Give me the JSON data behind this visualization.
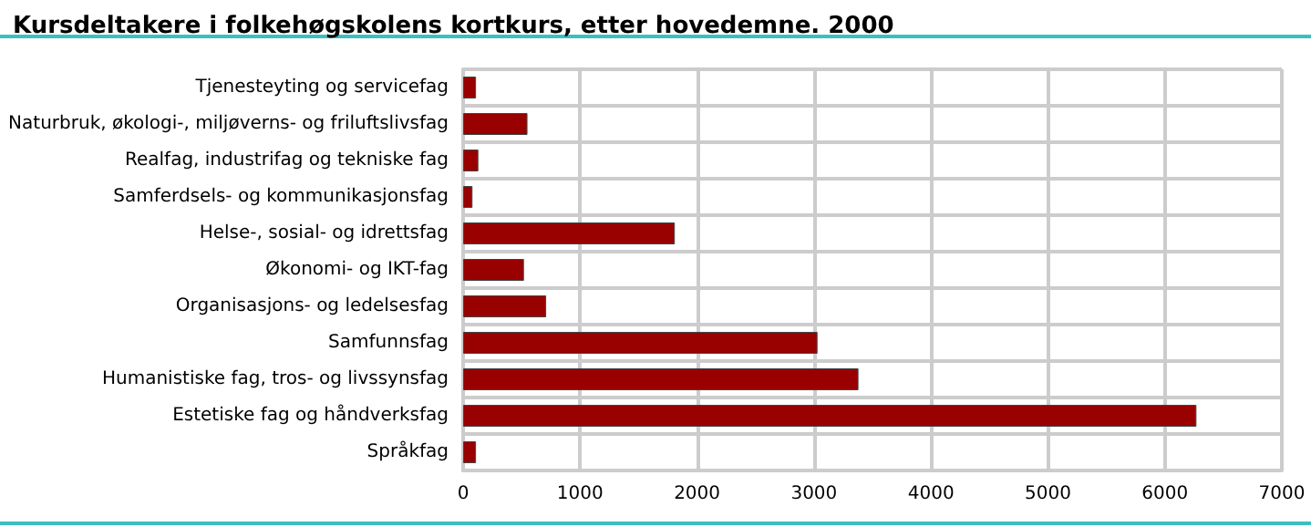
{
  "chart_data": {
    "type": "bar",
    "orientation": "horizontal",
    "title": "Kursdeltakere i folkehøgskolens kortkurs, etter hovedemne. 2000",
    "categories": [
      "Tjenesteyting og servicefag",
      "Naturbruk, økologi-, miljøverns- og friluftslivsfag",
      "Realfag, industrifag og tekniske fag",
      "Samferdsels- og kommunikasjonsfag",
      "Helse-, sosial- og idrettsfag",
      "Økonomi- og IKT-fag",
      "Organisasjons- og ledelsesfag",
      "Samfunnsfag",
      "Humanistiske fag, tros- og livssynsfag",
      "Estetiske fag og håndverksfag",
      "Språkfag"
    ],
    "values": [
      110,
      550,
      130,
      80,
      1810,
      520,
      710,
      3030,
      3380,
      6270,
      110
    ],
    "color": "#990000",
    "xlim": [
      0,
      7000
    ],
    "xticks": [
      0,
      1000,
      2000,
      3000,
      4000,
      5000,
      6000,
      7000
    ],
    "grid": true
  }
}
